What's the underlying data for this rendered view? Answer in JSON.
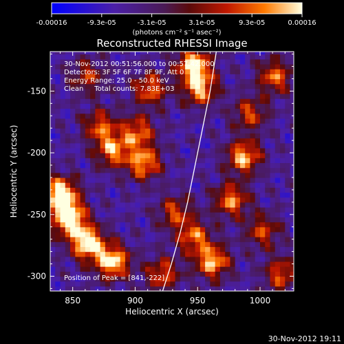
{
  "chart_data": {
    "type": "heatmap",
    "title": "Reconstructed RHESSI Image",
    "xlabel": "Heliocentric X (arcsec)",
    "ylabel": "Heliocentric Y (arcsec)",
    "xlim": [
      832,
      1027
    ],
    "ylim": [
      -312,
      -118
    ],
    "x_ticks": [
      850,
      900,
      950,
      1000
    ],
    "y_ticks": [
      -150,
      -200,
      -250,
      -300
    ],
    "colorbar": {
      "min": -0.00016,
      "max": 0.00016,
      "tick_labels": [
        "-0.00016",
        "-9.3e-05",
        "-3.1e-05",
        "3.1e-05",
        "9.3e-05",
        "0.00016"
      ],
      "unit_label": "(photons cm⁻² s⁻¹ asec⁻²)"
    },
    "annotations": {
      "time_range": "30-Nov-2012 00:51:56.000 to 00:57:42.000",
      "detectors": "Detectors: 3F 5F 6F 7F 8F 9F, Att 0",
      "energy": "Energy Range: 25.0 - 50.0 keV",
      "method": "Clean     Total counts: 7.83E+03",
      "peak": "Position of Peak = [841,-222]"
    },
    "limb_curve": {
      "x": [
        965,
        960,
        954,
        948,
        942,
        936,
        929,
        922
      ],
      "y": [
        -118,
        -150,
        -180,
        -210,
        -240,
        -265,
        -290,
        -312
      ]
    },
    "bright_regions": [
      {
        "x": 845,
        "y": -255,
        "intensity": 1.0
      },
      {
        "x": 838,
        "y": -235,
        "intensity": 0.95
      },
      {
        "x": 860,
        "y": -275,
        "intensity": 0.9
      },
      {
        "x": 880,
        "y": -290,
        "intensity": 0.85
      },
      {
        "x": 945,
        "y": -130,
        "intensity": 0.85
      },
      {
        "x": 950,
        "y": -150,
        "intensity": 0.7
      },
      {
        "x": 985,
        "y": -205,
        "intensity": 0.75
      },
      {
        "x": 975,
        "y": -240,
        "intensity": 0.65
      },
      {
        "x": 960,
        "y": -290,
        "intensity": 0.75
      },
      {
        "x": 945,
        "y": -270,
        "intensity": 0.6
      },
      {
        "x": 905,
        "y": -210,
        "intensity": 0.7
      },
      {
        "x": 880,
        "y": -200,
        "intensity": 0.65
      },
      {
        "x": 870,
        "y": -180,
        "intensity": 0.55
      },
      {
        "x": 900,
        "y": -185,
        "intensity": 0.6
      },
      {
        "x": 910,
        "y": -150,
        "intensity": 0.6
      },
      {
        "x": 1010,
        "y": -140,
        "intensity": 0.6
      },
      {
        "x": 1015,
        "y": -300,
        "intensity": 0.55
      },
      {
        "x": 1000,
        "y": -265,
        "intensity": 0.5
      },
      {
        "x": 990,
        "y": -170,
        "intensity": 0.5
      },
      {
        "x": 930,
        "y": -250,
        "intensity": 0.5
      },
      {
        "x": 860,
        "y": -140,
        "intensity": 0.45
      },
      {
        "x": 920,
        "y": -300,
        "intensity": 0.55
      }
    ]
  },
  "footer": {
    "timestamp": "30-Nov-2012 19:11"
  }
}
